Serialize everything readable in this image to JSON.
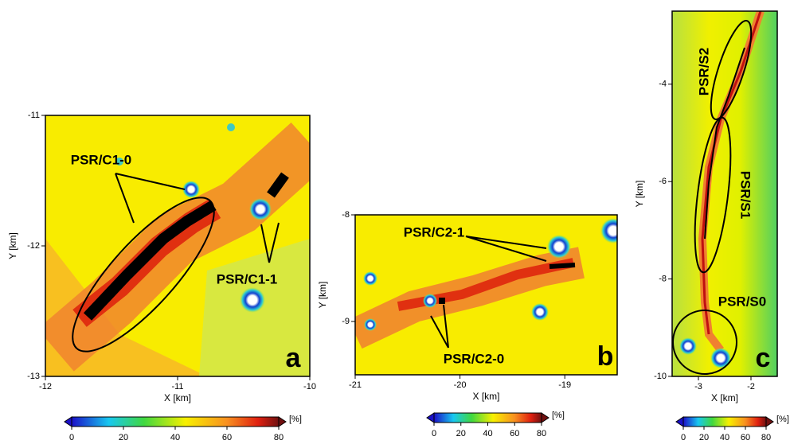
{
  "chart_data": [
    {
      "type": "heatmap",
      "x_label": "X [km]",
      "y_label": "Y [km]",
      "xlim": [
        -12,
        -10
      ],
      "ylim": [
        -13,
        -11
      ],
      "xticks": [
        -12,
        -11,
        -10
      ],
      "yticks": [
        -13,
        -12,
        -11
      ],
      "annotations": [
        "PSR/C1-0",
        "PSR/C1-1"
      ],
      "panel_label": "a",
      "colorbar": {
        "label": "[%]",
        "lim": [
          0,
          80
        ],
        "ticks": [
          0,
          20,
          40,
          60,
          80
        ]
      }
    },
    {
      "type": "heatmap",
      "x_label": "X [km]",
      "y_label": "Y [km]",
      "xlim": [
        -21,
        -18.5
      ],
      "ylim": [
        -9.5,
        -8
      ],
      "xticks": [
        -21,
        -20,
        -19
      ],
      "yticks": [
        -9,
        -8
      ],
      "annotations": [
        "PSR/C2-1",
        "PSR/C2-0"
      ],
      "panel_label": "b",
      "colorbar": {
        "label": "[%]",
        "lim": [
          0,
          80
        ],
        "ticks": [
          0,
          20,
          40,
          60,
          80
        ]
      }
    },
    {
      "type": "heatmap",
      "x_label": "X [km]",
      "y_label": "Y [km]",
      "xlim": [
        -3.5,
        -1.5
      ],
      "ylim": [
        -10,
        -2.5
      ],
      "xticks": [
        -3,
        -2
      ],
      "yticks": [
        -10,
        -8,
        -6,
        -4
      ],
      "annotations": [
        "PSR/S2",
        "PSR/S1",
        "PSR/S0"
      ],
      "panel_label": "c",
      "colorbar": {
        "label": "[%]",
        "lim": [
          0,
          80
        ],
        "ticks": [
          0,
          20,
          40,
          60,
          80
        ]
      }
    }
  ]
}
